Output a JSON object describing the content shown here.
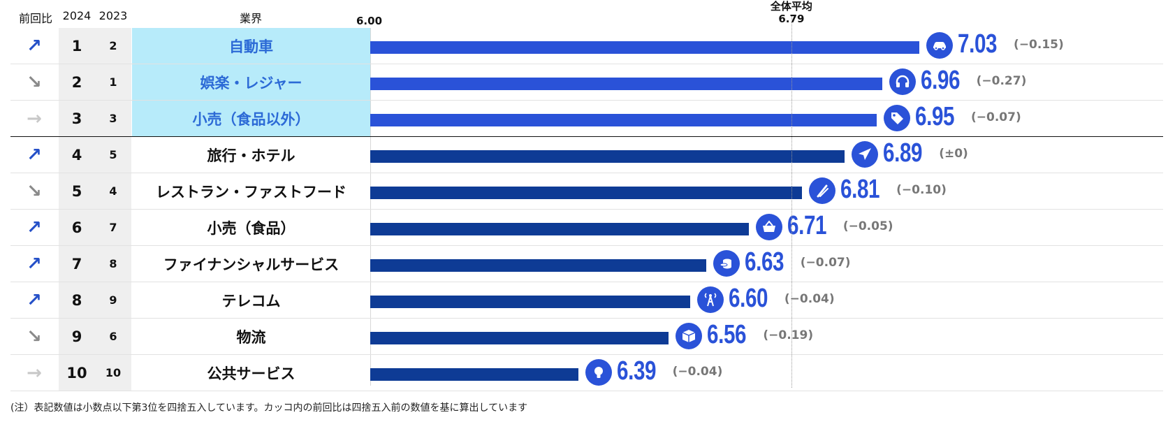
{
  "headers": {
    "change": "前回比",
    "y2024": "2024",
    "y2023": "2023",
    "industry": "業界"
  },
  "chart_data": {
    "type": "bar",
    "orientation": "horizontal",
    "axis_start_label": "6.00",
    "xlim": [
      6.0,
      7.14
    ],
    "average": {
      "label": "全体平均",
      "value": 6.79,
      "value_label": "6.79"
    },
    "rows": [
      {
        "trend": "up",
        "trend_glyph": "↗",
        "rank": "1",
        "prev": "2",
        "industry": "自動車",
        "value": 7.03,
        "value_label": "7.03",
        "change": "(−0.15)",
        "icon": "car-icon",
        "top3": true
      },
      {
        "trend": "down",
        "trend_glyph": "↘",
        "rank": "2",
        "prev": "1",
        "industry": "娯楽・レジャー",
        "value": 6.96,
        "value_label": "6.96",
        "change": "(−0.27)",
        "icon": "headphones-icon",
        "top3": true
      },
      {
        "trend": "flat",
        "trend_glyph": "→",
        "rank": "3",
        "prev": "3",
        "industry": "小売（食品以外）",
        "value": 6.95,
        "value_label": "6.95",
        "change": "(−0.07)",
        "icon": "tag-icon",
        "top3": true
      },
      {
        "trend": "up",
        "trend_glyph": "↗",
        "rank": "4",
        "prev": "5",
        "industry": "旅行・ホテル",
        "value": 6.89,
        "value_label": "6.89",
        "change": "(±0)",
        "icon": "airplane-icon",
        "top3": false
      },
      {
        "trend": "down",
        "trend_glyph": "↘",
        "rank": "5",
        "prev": "4",
        "industry": "レストラン・ファストフード",
        "value": 6.81,
        "value_label": "6.81",
        "change": "(−0.10)",
        "icon": "utensils-icon",
        "top3": false
      },
      {
        "trend": "up",
        "trend_glyph": "↗",
        "rank": "6",
        "prev": "7",
        "industry": "小売（食品）",
        "value": 6.71,
        "value_label": "6.71",
        "change": "(−0.05)",
        "icon": "basket-icon",
        "top3": false
      },
      {
        "trend": "up",
        "trend_glyph": "↗",
        "rank": "7",
        "prev": "8",
        "industry": "ファイナンシャルサービス",
        "value": 6.63,
        "value_label": "6.63",
        "change": "(−0.07)",
        "icon": "coins-icon",
        "top3": false
      },
      {
        "trend": "up",
        "trend_glyph": "↗",
        "rank": "8",
        "prev": "9",
        "industry": "テレコム",
        "value": 6.6,
        "value_label": "6.60",
        "change": "(−0.04)",
        "icon": "antenna-icon",
        "top3": false
      },
      {
        "trend": "down",
        "trend_glyph": "↘",
        "rank": "9",
        "prev": "6",
        "industry": "物流",
        "value": 6.56,
        "value_label": "6.56",
        "change": "(−0.19)",
        "icon": "package-icon",
        "top3": false
      },
      {
        "trend": "flat",
        "trend_glyph": "→",
        "rank": "10",
        "prev": "10",
        "industry": "公共サービス",
        "value": 6.39,
        "value_label": "6.39",
        "change": "(−0.04)",
        "icon": "lightbulb-icon",
        "top3": false
      }
    ]
  },
  "colors": {
    "bar_top3": "#2a52d8",
    "bar_other": "#0e3b95",
    "value_text": "#2a52d8",
    "top3_bg": "#b7ebfa"
  },
  "note": "(注）表記数値は小数点以下第3位を四捨五入しています。カッコ内の前回比は四捨五入前の数値を基に算出しています"
}
